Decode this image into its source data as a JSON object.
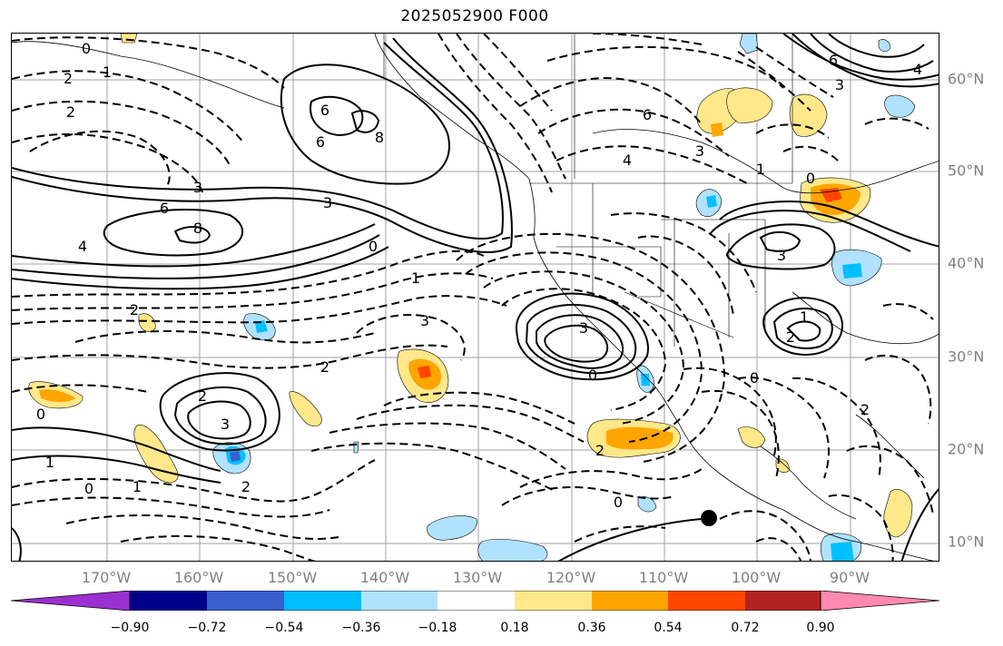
{
  "title": "2025052900 F000",
  "lat_labels": [
    "60°N",
    "50°N",
    "40°N",
    "30°N",
    "20°N",
    "10°N"
  ],
  "lon_labels": [
    "170°W",
    "160°W",
    "150°W",
    "140°W",
    "130°W",
    "120°W",
    "110°W",
    "100°W",
    "90°W"
  ],
  "contour_labels": [
    "0",
    "1",
    "2",
    "2",
    "3",
    "4",
    "6",
    "8",
    "3",
    "6",
    "8",
    "6",
    "4",
    "3",
    "0",
    "1",
    "2",
    "3",
    "2",
    "3",
    "0",
    "1",
    "2",
    "2",
    "3",
    "6",
    "0",
    "1",
    "2",
    "0",
    "6",
    "4",
    "3",
    "1",
    "0",
    "3",
    "2",
    "0",
    "2",
    "0",
    "1"
  ],
  "colorbar": {
    "ticks": [
      "−0.90",
      "−0.72",
      "−0.54",
      "−0.36",
      "−0.18",
      "0.18",
      "0.36",
      "0.54",
      "0.72",
      "0.90"
    ],
    "colors": [
      "#9b30d0",
      "#00008b",
      "#3a5fcd",
      "#00bfff",
      "#b0e2ff",
      "#ffffff",
      "#ffe88a",
      "#ffa500",
      "#ff4500",
      "#b22222",
      "#ff89b0"
    ]
  },
  "marker": "station-dot"
}
